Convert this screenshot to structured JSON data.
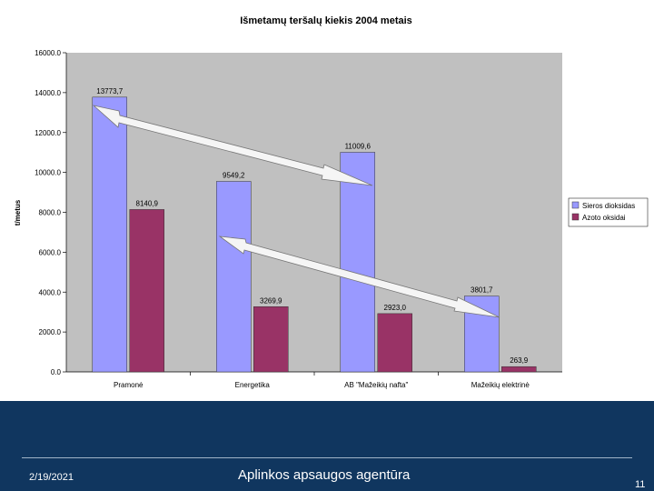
{
  "chart_data": {
    "type": "bar",
    "title": "Išmetamų teršalų kiekis 2004 metais",
    "ylabel": "t/metus",
    "xlabel": "",
    "ylim": [
      0,
      16000
    ],
    "yticks": [
      0,
      2000,
      4000,
      6000,
      8000,
      10000,
      12000,
      14000,
      16000
    ],
    "ytick_labels": [
      "0.0",
      "2000.0",
      "4000.0",
      "6000.0",
      "8000.0",
      "10000.0",
      "12000.0",
      "14000.0",
      "16000.0"
    ],
    "categories": [
      "Pramonė",
      "Energetika",
      "AB \"Mažeikių nafta\"",
      "Mažeikių elektrinė"
    ],
    "series": [
      {
        "name": "Sieros dioksidas",
        "color": "#9999ff",
        "values": [
          13773.7,
          9549.2,
          11009.6,
          3801.7
        ],
        "labels": [
          "13773,7",
          "9549,2",
          "11009,6",
          "3801,7"
        ]
      },
      {
        "name": "Azoto oksidai",
        "color": "#993366",
        "values": [
          8140.9,
          3269.9,
          2923.0,
          263.9
        ],
        "labels": [
          "8140,9",
          "3269,9",
          "2923,0",
          "263,9"
        ]
      }
    ],
    "legend_position": "right",
    "grid": false,
    "plot_background": "#c0c0c0"
  },
  "footer": {
    "date": "2/19/2021",
    "organization": "Aplinkos apsaugos agentūra",
    "page_number": "11"
  }
}
